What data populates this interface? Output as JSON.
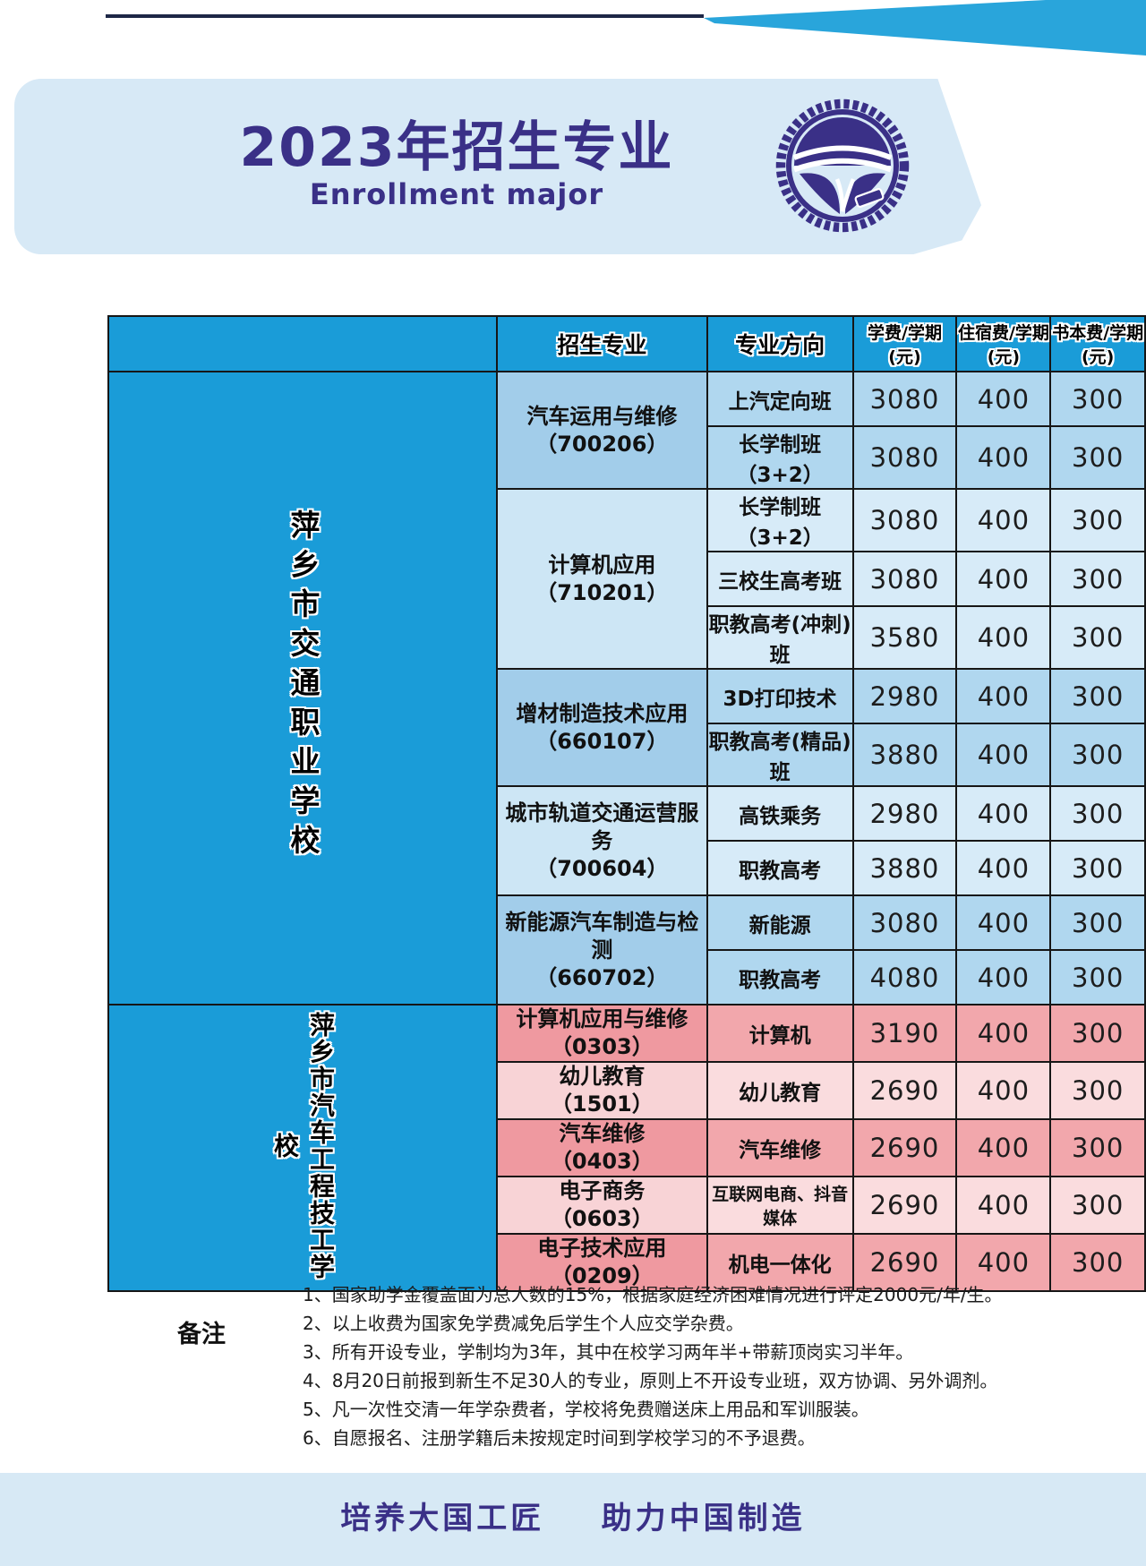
{
  "banner": {
    "title": "2023年招生专业",
    "subtitle": "Enrollment major",
    "logo_icon": "school-emblem"
  },
  "colors": {
    "accent_blue": "#1a9cd8",
    "medium_blue_row": "#b0d7ef",
    "light_blue_row": "#d7ebf8",
    "pink_dark_row": "#f2a7ac",
    "pink_light_row": "#fadcde",
    "banner_bg": "#d7e9f6",
    "title_purple": "#3a3087",
    "cyan_stripe": "#29a5db",
    "footer_bg": "#d7e9f5"
  },
  "table": {
    "headers": [
      "招生专业",
      "专业方向",
      "学费/学期(元)",
      "住宿费/学期(元)",
      "书本费/学期(元)"
    ],
    "schools": [
      {
        "name": "萍乡市交通职业学校",
        "groups": [
          {
            "major": "汽车运用与维修",
            "code": "（700206）",
            "shade": "medium",
            "rows": [
              [
                "上汽定向班",
                "3080",
                "400",
                "300"
              ],
              [
                "长学制班（3+2）",
                "3080",
                "400",
                "300"
              ]
            ]
          },
          {
            "major": "计算机应用",
            "code": "（710201）",
            "shade": "light",
            "rows": [
              [
                "长学制班（3+2）",
                "3080",
                "400",
                "300"
              ],
              [
                "三校生高考班",
                "3080",
                "400",
                "300"
              ],
              [
                "职教高考(冲刺)班",
                "3580",
                "400",
                "300"
              ]
            ]
          },
          {
            "major": "增材制造技术应用",
            "code": "（660107）",
            "shade": "medium",
            "rows": [
              [
                "3D打印技术",
                "2980",
                "400",
                "300"
              ],
              [
                "职教高考(精品)班",
                "3880",
                "400",
                "300"
              ]
            ]
          },
          {
            "major": "城市轨道交通运营服务",
            "code": "（700604）",
            "shade": "light",
            "rows": [
              [
                "高铁乘务",
                "2980",
                "400",
                "300"
              ],
              [
                "职教高考",
                "3880",
                "400",
                "300"
              ]
            ]
          },
          {
            "major": "新能源汽车制造与检测",
            "code": "（660702）",
            "shade": "medium",
            "rows": [
              [
                "新能源",
                "3080",
                "400",
                "300"
              ],
              [
                "职教高考",
                "4080",
                "400",
                "300"
              ]
            ]
          }
        ]
      },
      {
        "name": "萍乡市汽车工程技工学校",
        "groups": [
          {
            "major": "计算机应用与维修",
            "code": "（0303）",
            "shade": "pink-dark",
            "rows": [
              [
                "计算机",
                "3190",
                "400",
                "300"
              ]
            ]
          },
          {
            "major": "幼儿教育",
            "code": "（1501）",
            "shade": "pink-light",
            "rows": [
              [
                "幼儿教育",
                "2690",
                "400",
                "300"
              ]
            ]
          },
          {
            "major": "汽车维修",
            "code": "（0403）",
            "shade": "pink-dark",
            "rows": [
              [
                "汽车维修",
                "2690",
                "400",
                "300"
              ]
            ]
          },
          {
            "major": "电子商务",
            "code": "（0603）",
            "shade": "pink-light",
            "rows": [
              [
                "互联网电商、抖音媒体",
                "2690",
                "400",
                "300"
              ]
            ]
          },
          {
            "major": "电子技术应用",
            "code": "（0209）",
            "shade": "pink-dark",
            "rows": [
              [
                "机电一体化",
                "2690",
                "400",
                "300"
              ]
            ]
          }
        ]
      }
    ]
  },
  "notes": {
    "label": "备注",
    "items": [
      "1、国家助学金覆盖面为总人数的15%，根据家庭经济困难情况进行评定2000元/年/生。",
      "2、以上收费为国家免学费减免后学生个人应交学杂费。",
      "3、所有开设专业，学制均为3年，其中在校学习两年半+带薪顶岗实习半年。",
      "4、8月20日前报到新生不足30人的专业，原则上不开设专业班，双方协调、另外调剂。",
      "5、凡一次性交清一年学杂费者，学校将免费赠送床上用品和军训服装。",
      "6、自愿报名、注册学籍后未按规定时间到学校学习的不予退费。"
    ]
  },
  "footer": {
    "slogan": "培养大国工匠    助力中国制造"
  }
}
